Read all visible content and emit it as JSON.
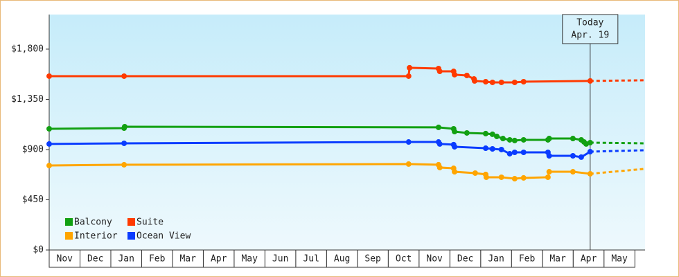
{
  "chart_data": {
    "type": "line",
    "categories": [
      "Nov",
      "Dec",
      "Jan",
      "Feb",
      "Mar",
      "Apr",
      "May",
      "Jun",
      "Jul",
      "Aug",
      "Sep",
      "Oct",
      "Nov",
      "Dec",
      "Jan",
      "Feb",
      "Mar",
      "Apr",
      "May"
    ],
    "xlim": [
      0,
      19.33
    ],
    "ylim": [
      0,
      2110
    ],
    "yticks": [
      {
        "value": 0,
        "label": "$0"
      },
      {
        "value": 450,
        "label": "$450"
      },
      {
        "value": 900,
        "label": "$900"
      },
      {
        "value": 1350,
        "label": "$1,350"
      },
      {
        "value": 1800,
        "label": "$1,800"
      }
    ],
    "today": {
      "x": 17.55,
      "label": "Today",
      "date": "Apr. 19"
    },
    "legend": "bottom-left",
    "series": [
      {
        "name": "Balcony",
        "color": "#12a012",
        "x": [
          0,
          2.43,
          2.45,
          12.63,
          13.12,
          13.15,
          13.55,
          14.16,
          14.38,
          14.52,
          14.72,
          14.94,
          15.1,
          15.39,
          16.18,
          16.22,
          16.99,
          17.26,
          17.35,
          17.42,
          17.55
        ],
        "values": [
          1086,
          1092,
          1105,
          1099,
          1086,
          1061,
          1049,
          1043,
          1037,
          1018,
          999,
          987,
          981,
          987,
          987,
          999,
          999,
          987,
          968,
          950,
          962
        ],
        "forecast_x": 19.28,
        "forecast_value": 956
      },
      {
        "name": "Suite",
        "color": "#ff3a00",
        "x": [
          0,
          2.43,
          11.66,
          11.69,
          12.63,
          12.67,
          13.12,
          13.15,
          13.55,
          13.78,
          13.8,
          14.16,
          14.38,
          14.67,
          15.1,
          15.39,
          17.55
        ],
        "values": [
          1558,
          1558,
          1558,
          1633,
          1626,
          1601,
          1601,
          1571,
          1564,
          1533,
          1515,
          1508,
          1502,
          1502,
          1502,
          1508,
          1515
        ],
        "forecast_x": 19.28,
        "forecast_value": 1521
      },
      {
        "name": "Interior",
        "color": "#ffa500",
        "x": [
          0,
          2.43,
          11.66,
          12.63,
          12.67,
          13.12,
          13.15,
          13.82,
          14.16,
          14.18,
          14.67,
          15.1,
          15.39,
          16.18,
          16.22,
          16.99,
          17.55
        ],
        "values": [
          757,
          764,
          770,
          764,
          739,
          732,
          701,
          689,
          677,
          652,
          652,
          639,
          646,
          652,
          701,
          701,
          683
        ],
        "forecast_x": 19.28,
        "forecast_value": 726
      },
      {
        "name": "Ocean View",
        "color": "#0a3cff",
        "x": [
          0,
          2.43,
          11.66,
          12.63,
          12.67,
          13.12,
          13.15,
          14.16,
          14.38,
          14.67,
          14.94,
          15.1,
          15.39,
          16.18,
          16.22,
          16.99,
          17.26,
          17.55
        ],
        "values": [
          950,
          956,
          968,
          968,
          950,
          944,
          925,
          912,
          906,
          900,
          863,
          875,
          875,
          875,
          844,
          844,
          832,
          881
        ],
        "forecast_x": 19.28,
        "forecast_value": 894
      }
    ]
  }
}
